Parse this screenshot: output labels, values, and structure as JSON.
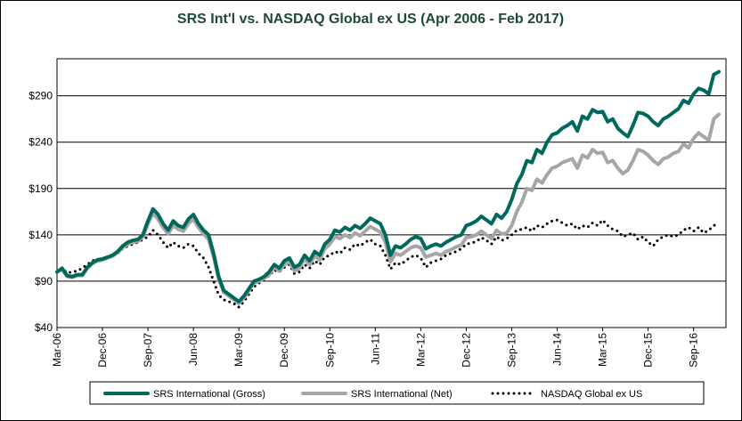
{
  "chart_data": {
    "type": "line",
    "title": "SRS Int'l vs. NASDAQ Global ex US (Apr 2006 - Feb 2017)",
    "categories": [
      "Mar-06",
      null,
      null,
      null,
      null,
      null,
      null,
      null,
      null,
      "Dec-06",
      null,
      null,
      null,
      null,
      null,
      null,
      null,
      null,
      "Sep-07",
      null,
      null,
      null,
      null,
      null,
      null,
      null,
      null,
      "Jun-08",
      null,
      null,
      null,
      null,
      null,
      null,
      null,
      null,
      "Mar-09",
      null,
      null,
      null,
      null,
      null,
      null,
      null,
      null,
      "Dec-09",
      null,
      null,
      null,
      null,
      null,
      null,
      null,
      null,
      "Sep-10",
      null,
      null,
      null,
      null,
      null,
      null,
      null,
      null,
      "Jun-11",
      null,
      null,
      null,
      null,
      null,
      null,
      null,
      null,
      "Mar-12",
      null,
      null,
      null,
      null,
      null,
      null,
      null,
      null,
      "Dec-12",
      null,
      null,
      null,
      null,
      null,
      null,
      null,
      null,
      "Sep-13",
      null,
      null,
      null,
      null,
      null,
      null,
      null,
      null,
      "Jun-14",
      null,
      null,
      null,
      null,
      null,
      null,
      null,
      null,
      "Mar-15",
      null,
      null,
      null,
      null,
      null,
      null,
      null,
      null,
      "Dec-15",
      null,
      null,
      null,
      null,
      null,
      null,
      null,
      null,
      "Sep-16",
      null,
      null,
      null,
      null,
      null
    ],
    "series": [
      {
        "name": "SRS International (Gross)",
        "color": "#00695c",
        "style": "solid",
        "values": [
          100,
          104,
          96,
          95,
          97,
          97,
          105,
          110,
          113,
          114,
          116,
          118,
          122,
          128,
          132,
          134,
          135,
          140,
          155,
          168,
          162,
          152,
          145,
          155,
          150,
          148,
          157,
          162,
          152,
          145,
          140,
          120,
          95,
          80,
          76,
          72,
          68,
          74,
          82,
          90,
          92,
          95,
          100,
          108,
          104,
          112,
          115,
          105,
          108,
          118,
          112,
          122,
          118,
          130,
          135,
          145,
          143,
          148,
          145,
          150,
          147,
          152,
          158,
          155,
          152,
          140,
          118,
          128,
          126,
          130,
          135,
          138,
          136,
          125,
          128,
          130,
          128,
          132,
          135,
          138,
          140,
          150,
          152,
          155,
          160,
          156,
          152,
          162,
          158,
          165,
          178,
          195,
          205,
          220,
          218,
          232,
          228,
          240,
          248,
          250,
          255,
          258,
          262,
          252,
          268,
          265,
          275,
          272,
          273,
          262,
          265,
          255,
          250,
          246,
          258,
          272,
          271,
          268,
          262,
          258,
          265,
          268,
          272,
          276,
          285,
          282,
          292,
          298,
          296,
          292,
          313,
          316
        ]
      },
      {
        "name": "SRS International (Net)",
        "color": "#a6a6a6",
        "style": "solid",
        "values": [
          100,
          103,
          95,
          94,
          96,
          96,
          104,
          109,
          112,
          113,
          115,
          117,
          121,
          126,
          130,
          132,
          133,
          138,
          152,
          163,
          157,
          148,
          141,
          150,
          146,
          144,
          152,
          157,
          148,
          141,
          135,
          116,
          92,
          78,
          74,
          70,
          66,
          72,
          80,
          88,
          90,
          93,
          97,
          105,
          101,
          108,
          111,
          101,
          104,
          114,
          108,
          117,
          113,
          125,
          130,
          138,
          136,
          140,
          137,
          142,
          139,
          144,
          149,
          146,
          143,
          132,
          111,
          120,
          118,
          122,
          126,
          128,
          126,
          116,
          118,
          120,
          118,
          122,
          124,
          127,
          129,
          137,
          138,
          140,
          144,
          140,
          136,
          145,
          141,
          142,
          150,
          165,
          175,
          190,
          188,
          200,
          196,
          205,
          212,
          214,
          218,
          220,
          222,
          212,
          226,
          223,
          232,
          228,
          229,
          218,
          220,
          212,
          206,
          210,
          220,
          232,
          230,
          226,
          220,
          216,
          222,
          224,
          228,
          230,
          238,
          234,
          244,
          250,
          246,
          242,
          265,
          270
        ]
      },
      {
        "name": "NASDAQ Global ex US",
        "color": "#000000",
        "style": "dotted",
        "values": [
          100,
          104,
          99,
          100,
          101,
          104,
          108,
          112,
          114,
          113,
          116,
          118,
          120,
          125,
          128,
          130,
          132,
          135,
          138,
          145,
          140,
          132,
          126,
          132,
          128,
          126,
          130,
          128,
          120,
          115,
          105,
          90,
          75,
          70,
          68,
          66,
          62,
          68,
          76,
          84,
          88,
          92,
          96,
          102,
          100,
          105,
          108,
          98,
          100,
          108,
          104,
          112,
          108,
          116,
          118,
          122,
          120,
          126,
          124,
          130,
          128,
          132,
          135,
          130,
          128,
          118,
          103,
          110,
          108,
          112,
          116,
          118,
          115,
          105,
          110,
          112,
          114,
          118,
          120,
          122,
          125,
          130,
          131,
          133,
          137,
          134,
          130,
          138,
          134,
          136,
          140,
          145,
          146,
          148,
          144,
          150,
          148,
          152,
          155,
          156,
          153,
          150,
          152,
          146,
          150,
          148,
          153,
          150,
          156,
          150,
          146,
          144,
          138,
          140,
          142,
          135,
          138,
          132,
          128,
          135,
          138,
          140,
          138,
          140,
          145,
          148,
          144,
          148,
          142,
          145,
          150,
          152
        ]
      }
    ],
    "ylim": [
      40,
      330
    ],
    "yticks": [
      {
        "value": 40,
        "label": "$40"
      },
      {
        "value": 90,
        "label": "$90"
      },
      {
        "value": 140,
        "label": "$140"
      },
      {
        "value": 190,
        "label": "$190"
      },
      {
        "value": 240,
        "label": "$240"
      },
      {
        "value": 290,
        "label": "$290"
      }
    ],
    "grid": true
  }
}
